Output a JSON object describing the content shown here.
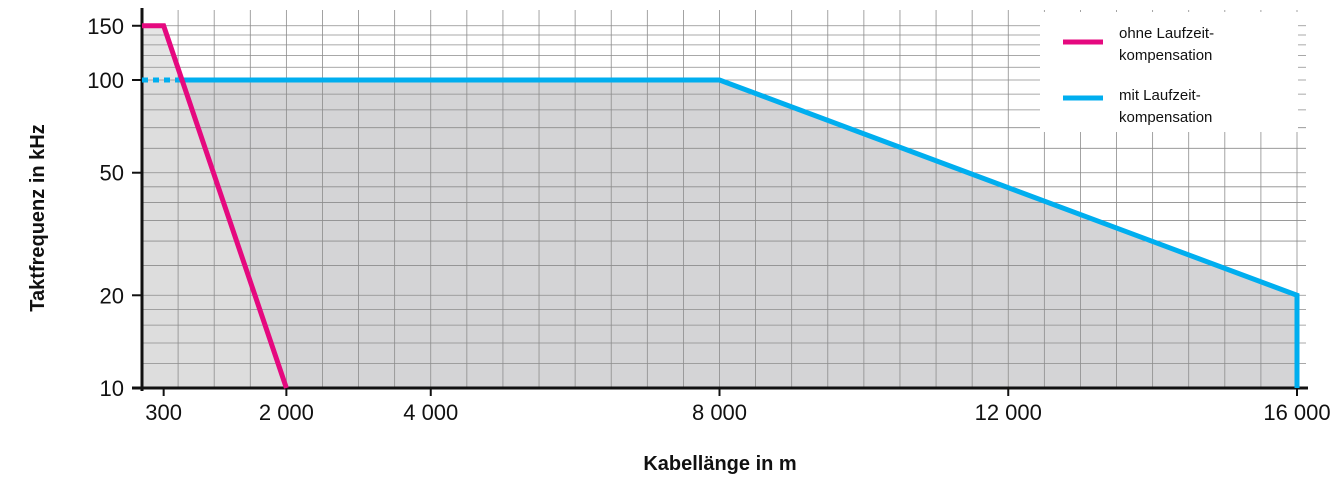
{
  "chart_data": {
    "type": "line",
    "xlabel": "Kabellänge in m",
    "ylabel": "Taktfrequenz in kHz",
    "x_scale": "linear",
    "y_scale": "log",
    "xlim": [
      0,
      16100
    ],
    "ylim": [
      10,
      155
    ],
    "grid": true,
    "legend_position": "top-right",
    "x_ticks": [
      {
        "value": 300,
        "label": "300"
      },
      {
        "value": 2000,
        "label": "2 000"
      },
      {
        "value": 4000,
        "label": "4 000"
      },
      {
        "value": 8000,
        "label": "8 000"
      },
      {
        "value": 12000,
        "label": "12 000"
      },
      {
        "value": 16000,
        "label": "16 000"
      }
    ],
    "y_ticks": [
      {
        "value": 10,
        "label": "10"
      },
      {
        "value": 20,
        "label": "20"
      },
      {
        "value": 50,
        "label": "50"
      },
      {
        "value": 100,
        "label": "100"
      },
      {
        "value": 150,
        "label": "150"
      }
    ],
    "series": [
      {
        "name": "ohne Laufzeit-\nkompensation",
        "legend_lines": [
          "ohne Laufzeit-",
          "kompensation"
        ],
        "color": "#e5097f",
        "x": [
          0,
          300,
          2000
        ],
        "y": [
          150,
          150,
          10
        ]
      },
      {
        "name": "mit Laufzeit-\nkompensation",
        "legend_lines": [
          "mit Laufzeit-",
          "kompensation"
        ],
        "color": "#00aeef",
        "x": [
          500,
          8000,
          16000,
          16000
        ],
        "y": [
          100,
          100,
          20,
          10
        ],
        "dashed_lead_in": {
          "x": [
            0,
            500
          ],
          "y": [
            100,
            100
          ]
        }
      }
    ]
  }
}
